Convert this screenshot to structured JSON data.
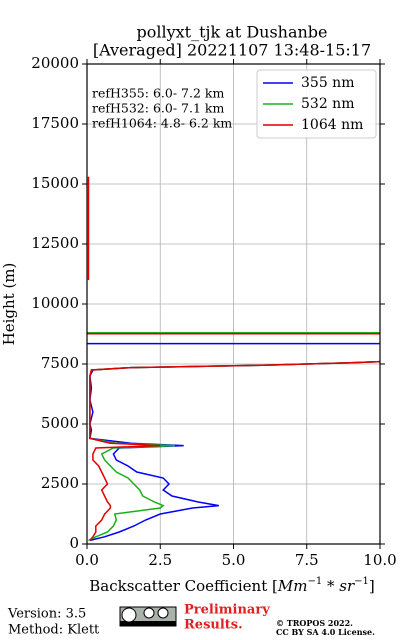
{
  "chart_data": {
    "type": "profile",
    "title": "pollyxt_tjk at Dushanbe",
    "subtitle": "[Averaged] 20221107 13:48-15:17",
    "y_label": "Height (m)",
    "x_label_parts": [
      "Backscatter Coefficient [",
      "Mm",
      "−1",
      " * ",
      "sr",
      "−1",
      "]"
    ],
    "xlim": [
      0,
      10
    ],
    "xticks": [
      {
        "value": 0,
        "label": "0.0"
      },
      {
        "value": 2.5,
        "label": "2.5"
      },
      {
        "value": 5,
        "label": "5.0"
      },
      {
        "value": 7.5,
        "label": "7.5"
      },
      {
        "value": 10,
        "label": "10.0"
      }
    ],
    "ylim": [
      0,
      20000
    ],
    "yticks": [
      0,
      2500,
      5000,
      7500,
      10000,
      12500,
      15000,
      17500,
      20000
    ],
    "grid": true,
    "legend": "upper right",
    "heights": [
      150,
      300,
      500,
      750,
      1000,
      1250,
      1500,
      1600,
      1750,
      2000,
      2250,
      2500,
      2750,
      3000,
      3250,
      3500,
      3750,
      4000,
      4100,
      4200,
      4400,
      4750,
      5000,
      5500,
      6000,
      6500,
      7000,
      7250,
      7350,
      7450,
      7550,
      7600,
      9000,
      11000,
      15300
    ],
    "series": [
      {
        "name": "355 nm",
        "color": "#0000ff",
        "values": [
          0.1,
          0.6,
          1.1,
          1.6,
          2.0,
          2.5,
          3.6,
          4.5,
          3.8,
          2.9,
          2.6,
          2.8,
          2.6,
          1.7,
          1.4,
          1.0,
          0.9,
          1.1,
          3.3,
          1.5,
          0.1,
          0.15,
          0.1,
          0.2,
          0.1,
          0.15,
          0.1,
          0.2,
          1.5,
          6.0,
          9.0,
          10.0,
          null,
          null,
          null
        ]
      },
      {
        "name": "532 nm",
        "color": "#1aaf1a",
        "values": [
          0.05,
          0.3,
          0.7,
          0.9,
          1.0,
          0.95,
          2.5,
          2.6,
          2.3,
          1.9,
          1.8,
          1.6,
          1.4,
          1.0,
          0.8,
          0.6,
          0.5,
          0.9,
          3.0,
          1.0,
          0.1,
          0.1,
          0.1,
          0.1,
          0.1,
          0.1,
          0.1,
          0.15,
          1.5,
          6.0,
          9.0,
          10.0,
          null,
          null,
          null
        ]
      },
      {
        "name": "1064 nm",
        "color": "#e00000",
        "values": [
          0.1,
          0.2,
          0.3,
          0.3,
          0.5,
          0.6,
          0.8,
          0.8,
          0.7,
          0.6,
          0.5,
          0.7,
          0.6,
          0.5,
          0.4,
          0.2,
          0.2,
          0.3,
          2.5,
          0.8,
          0.1,
          0.1,
          0.1,
          0.1,
          0.1,
          0.1,
          0.1,
          0.15,
          1.5,
          6.0,
          9.0,
          10.0,
          null,
          0.05,
          0.05
        ]
      }
    ],
    "reference_lines": [
      {
        "value": 8350,
        "color": "#0000ff"
      },
      {
        "value": 8800,
        "color": "#1aaf1a"
      },
      {
        "value": 8760,
        "color": "#e00000"
      }
    ],
    "annotations": [
      "refH355:  6.0- 7.2 km",
      "refH532:  6.0- 7.1 km",
      "refH1064:  4.8- 6.2 km"
    ],
    "footer": {
      "version": "Version: 3.5",
      "method": "Method: Klett",
      "status_lines": [
        "Preliminary",
        "Results."
      ],
      "copyright_lines": [
        "© TROPOS 2022.",
        "CC BY SA 4.0 License."
      ]
    }
  }
}
